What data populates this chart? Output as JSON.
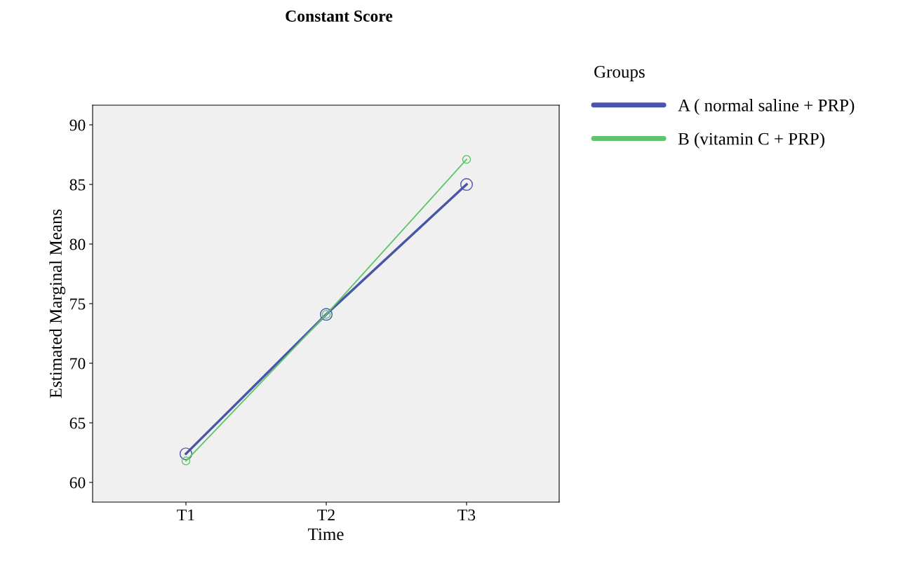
{
  "chart_data": {
    "type": "line",
    "title": "Constant Score",
    "xlabel": "Time",
    "ylabel": "Estimated Marginal Means",
    "legend_title": "Groups",
    "categories": [
      "T1",
      "T2",
      "T3"
    ],
    "series": [
      {
        "name": "A ( normal saline + PRP)",
        "color": "#4a55a8",
        "values": [
          62.4,
          74.1,
          85.0
        ]
      },
      {
        "name": "B (vitamin C + PRP)",
        "color": "#5fc46a",
        "values": [
          61.8,
          74.1,
          87.1
        ]
      }
    ],
    "ylim": [
      58.35,
      91.65
    ],
    "yticks": [
      60,
      65,
      70,
      75,
      80,
      85,
      90
    ],
    "grid": false,
    "legend": "top right",
    "marker": "circle",
    "line_style": "solid"
  }
}
